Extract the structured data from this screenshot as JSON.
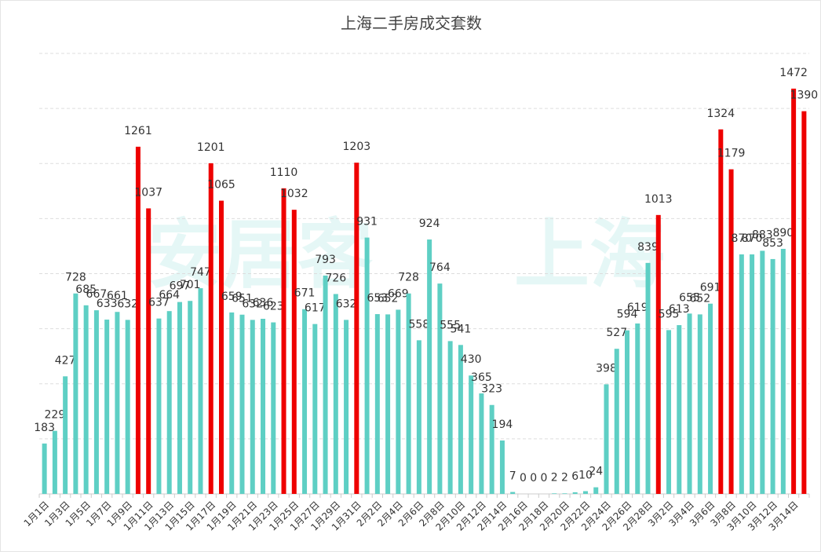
{
  "chart_data": {
    "type": "bar",
    "title": "上海二手房成交套数",
    "watermark": [
      "安居客",
      "上海"
    ],
    "categories": [
      "1月1日",
      null,
      "1月3日",
      null,
      "1月5日",
      null,
      "1月7日",
      null,
      "1月9日",
      null,
      "1月11日",
      null,
      "1月13日",
      null,
      "1月15日",
      null,
      "1月17日",
      null,
      "1月19日",
      null,
      "1月21日",
      null,
      "1月23日",
      null,
      "1月25日",
      null,
      "1月27日",
      null,
      "1月29日",
      null,
      "1月31日",
      null,
      "2月2日",
      null,
      "2月4日",
      null,
      "2月6日",
      null,
      "2月8日",
      null,
      "2月10日",
      null,
      "2月12日",
      null,
      "2月14日",
      null,
      "2月16日",
      null,
      "2月18日",
      null,
      "2月20日",
      null,
      "2月22日",
      null,
      "2月24日",
      null,
      "2月26日",
      null,
      "2月28日",
      null,
      "3月2日",
      null,
      "3月4日",
      null,
      "3月6日",
      null,
      "3月8日",
      null,
      "3月10日",
      null,
      "3月12日",
      null,
      "3月14日",
      null
    ],
    "values": [
      183,
      229,
      427,
      728,
      685,
      667,
      633,
      661,
      632,
      1261,
      1037,
      637,
      664,
      697,
      701,
      747,
      1201,
      1065,
      659,
      651,
      632,
      636,
      623,
      1110,
      1032,
      671,
      617,
      793,
      726,
      632,
      1203,
      931,
      653,
      652,
      669,
      728,
      558,
      924,
      764,
      555,
      541,
      430,
      365,
      323,
      194,
      7,
      0,
      0,
      0,
      2,
      2,
      6,
      10,
      24,
      398,
      527,
      594,
      619,
      839,
      1013,
      595,
      613,
      655,
      652,
      691,
      1324,
      1179,
      870,
      870,
      883,
      853,
      890,
      1472,
      1390
    ],
    "colors": [
      "#5ecfc4",
      "#5ecfc4",
      "#5ecfc4",
      "#5ecfc4",
      "#5ecfc4",
      "#5ecfc4",
      "#5ecfc4",
      "#5ecfc4",
      "#5ecfc4",
      "#ee0000",
      "#ee0000",
      "#5ecfc4",
      "#5ecfc4",
      "#5ecfc4",
      "#5ecfc4",
      "#5ecfc4",
      "#ee0000",
      "#ee0000",
      "#5ecfc4",
      "#5ecfc4",
      "#5ecfc4",
      "#5ecfc4",
      "#5ecfc4",
      "#ee0000",
      "#ee0000",
      "#5ecfc4",
      "#5ecfc4",
      "#5ecfc4",
      "#5ecfc4",
      "#5ecfc4",
      "#ee0000",
      "#5ecfc4",
      "#5ecfc4",
      "#5ecfc4",
      "#5ecfc4",
      "#5ecfc4",
      "#5ecfc4",
      "#5ecfc4",
      "#5ecfc4",
      "#5ecfc4",
      "#5ecfc4",
      "#5ecfc4",
      "#5ecfc4",
      "#5ecfc4",
      "#5ecfc4",
      "#5ecfc4",
      "#5ecfc4",
      "#5ecfc4",
      "#5ecfc4",
      "#5ecfc4",
      "#5ecfc4",
      "#5ecfc4",
      "#5ecfc4",
      "#5ecfc4",
      "#5ecfc4",
      "#5ecfc4",
      "#5ecfc4",
      "#5ecfc4",
      "#5ecfc4",
      "#ee0000",
      "#5ecfc4",
      "#5ecfc4",
      "#5ecfc4",
      "#5ecfc4",
      "#5ecfc4",
      "#ee0000",
      "#ee0000",
      "#5ecfc4",
      "#5ecfc4",
      "#5ecfc4",
      "#5ecfc4",
      "#5ecfc4",
      "#ee0000",
      "#ee0000"
    ],
    "ylim": [
      0,
      1600
    ],
    "yticks": [
      0,
      200,
      400,
      600,
      800,
      1000,
      1200,
      1400,
      1600
    ],
    "ytick_labels": false,
    "grid": true
  }
}
